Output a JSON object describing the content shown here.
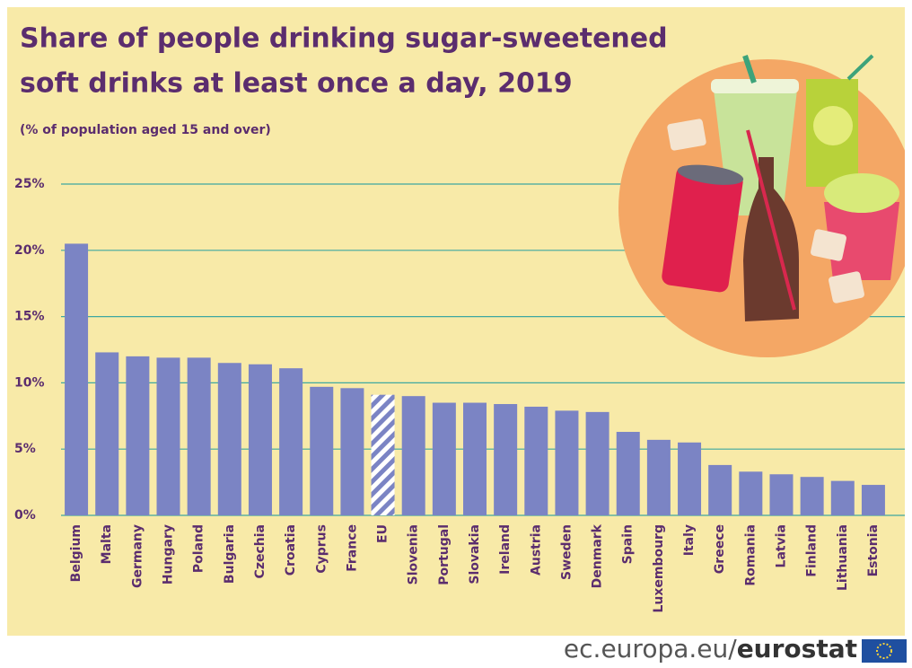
{
  "chart_data": {
    "type": "bar",
    "title": [
      "Share of people drinking sugar-sweetened",
      "soft drinks at least once a day, 2019"
    ],
    "subtitle": "(% of population aged 15 and over)",
    "categories": [
      "Belgium",
      "Malta",
      "Germany",
      "Hungary",
      "Poland",
      "Bulgaria",
      "Czechia",
      "Croatia",
      "Cyprus",
      "France",
      "EU",
      "Slovenia",
      "Portugal",
      "Slovakia",
      "Ireland",
      "Austria",
      "Sweden",
      "Denmark",
      "Spain",
      "Luxembourg",
      "Italy",
      "Greece",
      "Romania",
      "Latvia",
      "Finland",
      "Lithuania",
      "Estonia"
    ],
    "values": [
      20.5,
      12.3,
      12.0,
      11.9,
      11.9,
      11.5,
      11.4,
      11.1,
      9.7,
      9.6,
      9.1,
      9.0,
      8.5,
      8.5,
      8.4,
      8.2,
      7.9,
      7.8,
      6.3,
      5.7,
      5.5,
      3.8,
      3.3,
      3.1,
      2.9,
      2.6,
      2.3
    ],
    "color": "#7b84c4",
    "hatched": [
      "EU"
    ],
    "ylim": [
      0,
      25
    ],
    "yticks": [
      {
        "value": 0,
        "label": "0%"
      },
      {
        "value": 5,
        "label": "5%"
      },
      {
        "value": 10,
        "label": "10%"
      },
      {
        "value": 15,
        "label": "15%"
      },
      {
        "value": 20,
        "label": "20%"
      },
      {
        "value": 25,
        "label": "25%"
      }
    ],
    "grid": true,
    "source": [
      "ec.europa.eu/",
      "eurostat"
    ]
  }
}
